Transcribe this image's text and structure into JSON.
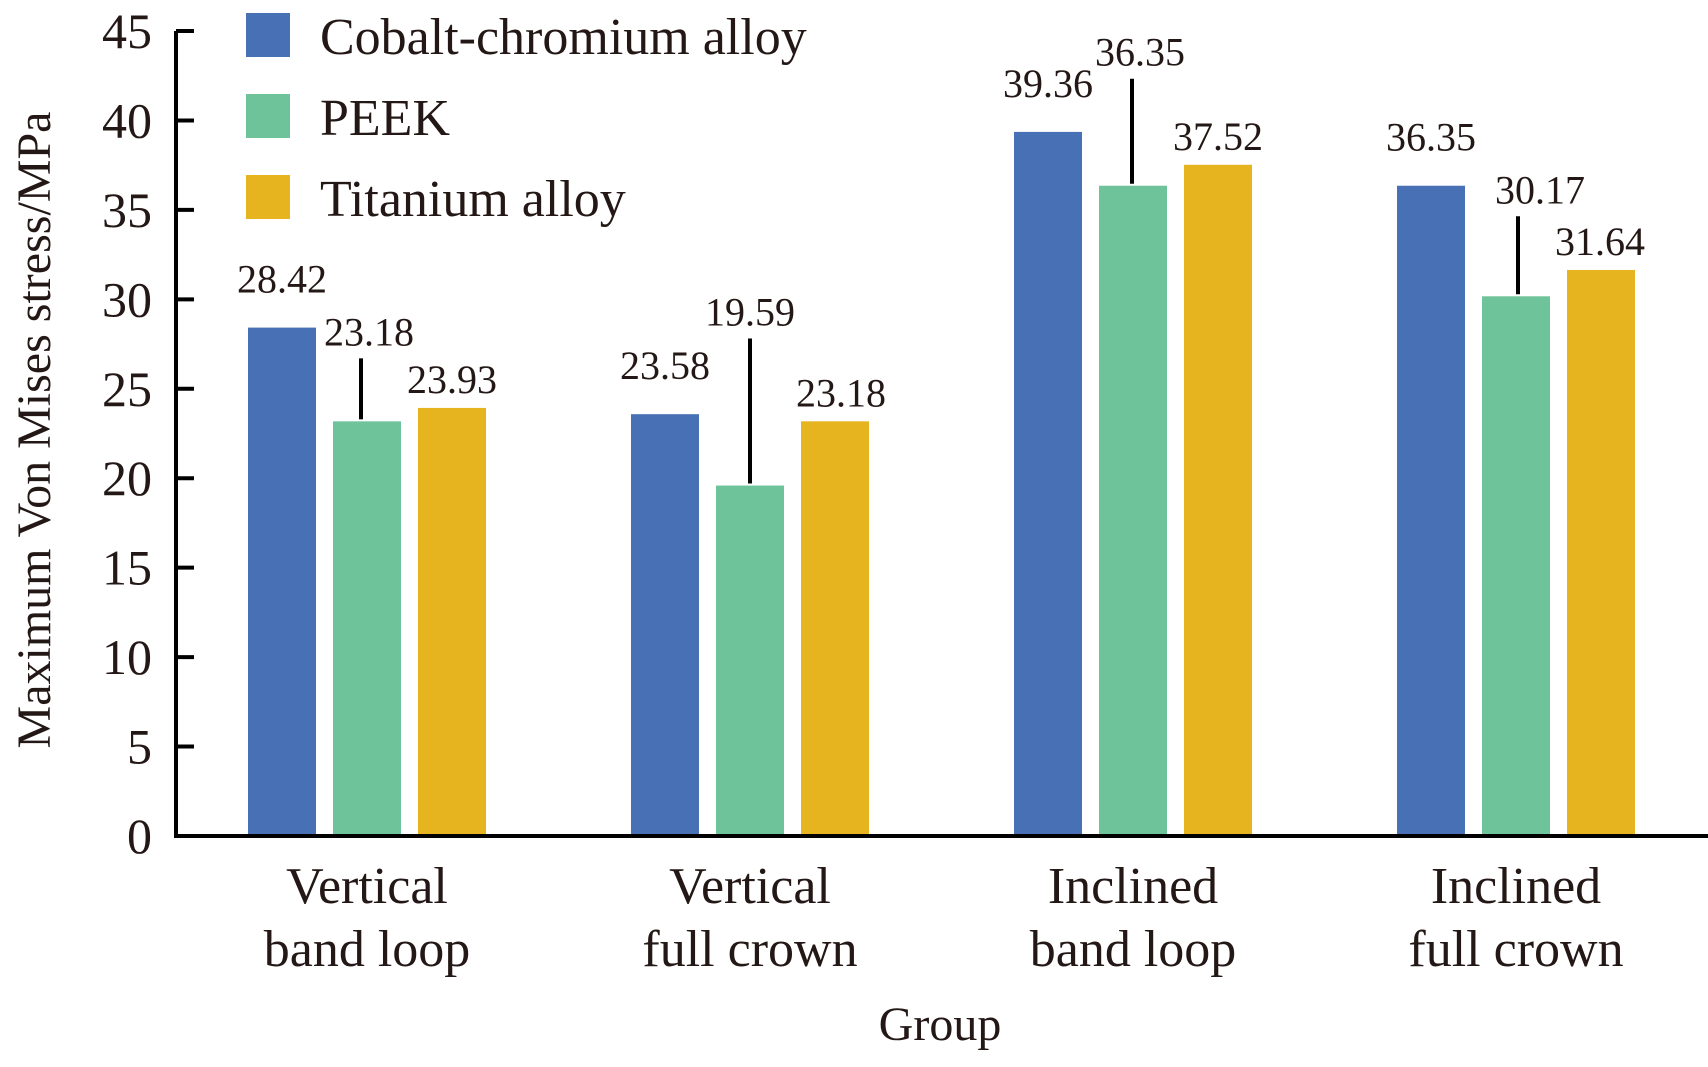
{
  "chart_data": {
    "type": "bar",
    "title": "",
    "xlabel": "Group",
    "ylabel": "Maximum Von Mises stress/MPa",
    "ylim": [
      0,
      45
    ],
    "yticks": [
      0,
      5,
      10,
      15,
      20,
      25,
      30,
      35,
      40,
      45
    ],
    "grid": false,
    "legend_position": "top-left",
    "categories": [
      [
        "Vertical",
        "band loop"
      ],
      [
        "Vertical",
        "full crown"
      ],
      [
        "Inclined",
        "band loop"
      ],
      [
        "Inclined",
        "full crown"
      ]
    ],
    "series": [
      {
        "name": "Cobalt-chromium alloy",
        "color": "#4870B4",
        "values": [
          28.42,
          23.58,
          39.36,
          36.35
        ]
      },
      {
        "name": "PEEK",
        "color": "#6FC39A",
        "values": [
          23.18,
          19.59,
          36.35,
          30.17
        ]
      },
      {
        "name": "Titanium alloy",
        "color": "#E5B41E",
        "values": [
          23.93,
          23.18,
          37.52,
          31.64
        ]
      }
    ],
    "data_labels": [
      [
        "28.42",
        "23.58",
        "39.36",
        "36.35"
      ],
      [
        "23.18",
        "19.59",
        "36.35",
        "30.17"
      ],
      [
        "23.93",
        "23.18",
        "37.52",
        "31.64"
      ]
    ]
  }
}
